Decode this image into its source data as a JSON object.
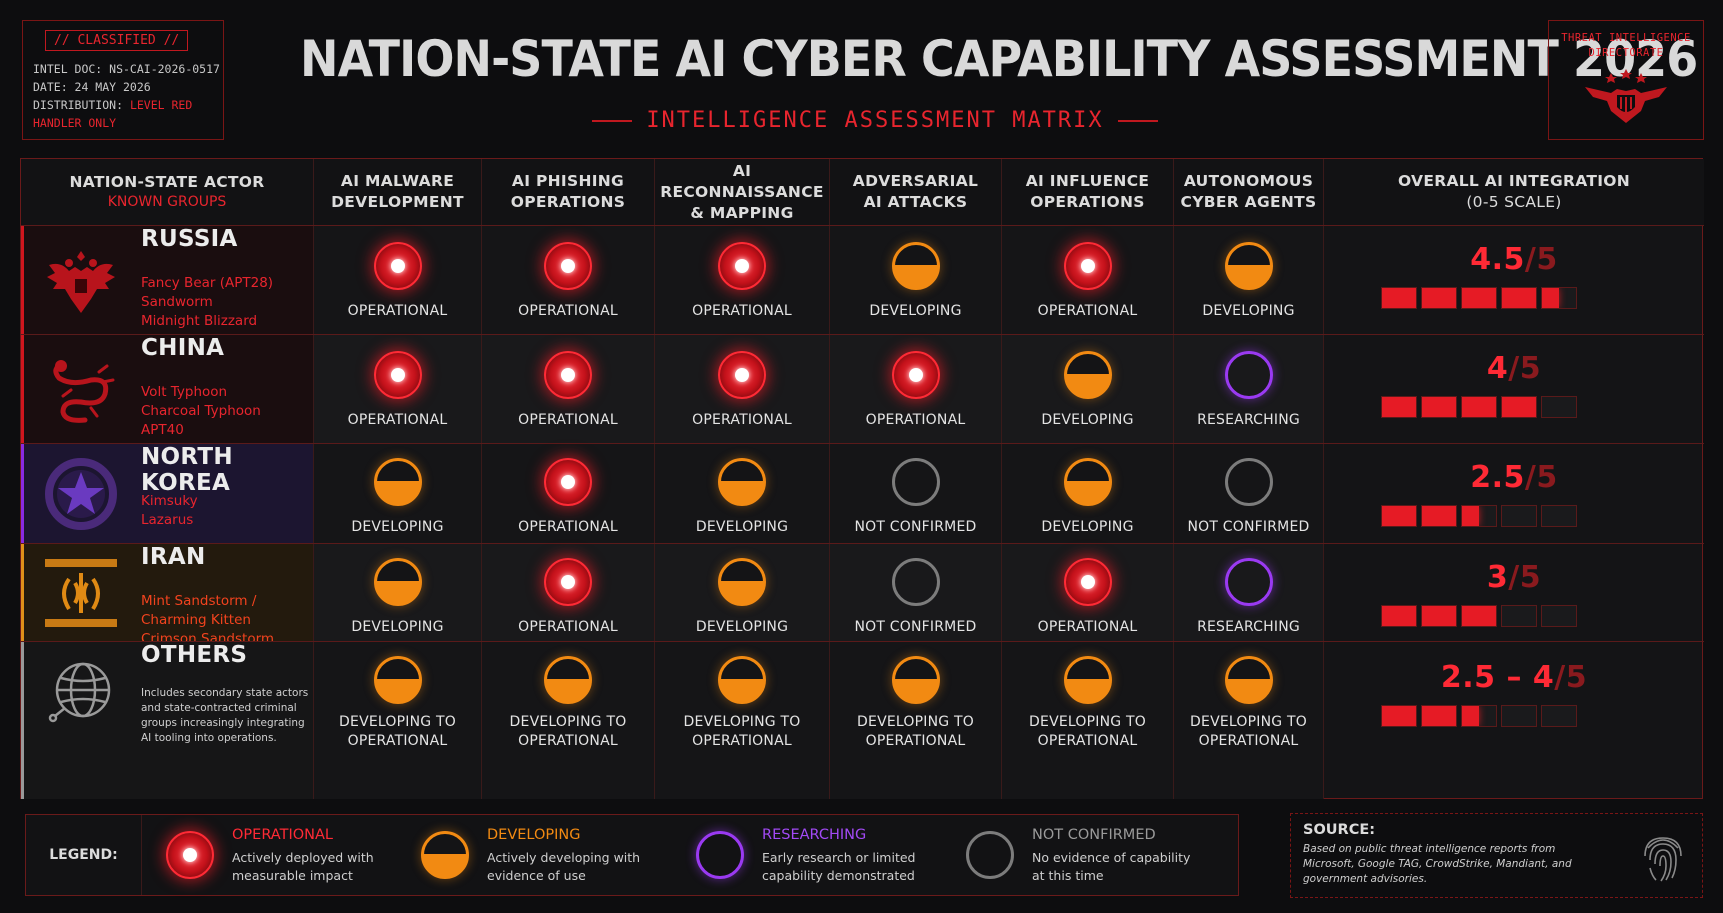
{
  "classified": {
    "tag": "// CLASSIFIED //",
    "doc": "INTEL DOC: NS-CAI-2026-0517",
    "date": "DATE: 24 MAY 2026",
    "distribution_label": "DISTRIBUTION: ",
    "distribution_value": "LEVEL RED",
    "distribution_value2": "HANDLER ONLY"
  },
  "title": "NATION-STATE AI CYBER CAPABILITY ASSESSMENT 2026",
  "subtitle": "INTELLIGENCE ASSESSMENT MATRIX",
  "directorate": {
    "line1": "THREAT INTELLIGENCE",
    "line2": "DIRECTORATE",
    "icon": "eagle-shield-icon"
  },
  "columns": {
    "actor": {
      "line1": "NATION-STATE ACTOR",
      "line2": "KNOWN GROUPS"
    },
    "c1": {
      "line1": "AI MALWARE",
      "line2": "DEVELOPMENT"
    },
    "c2": {
      "line1": "AI PHISHING",
      "line2": "OPERATIONS"
    },
    "c3": {
      "line1": "AI RECONNAISSANCE",
      "line2": "& MAPPING"
    },
    "c4": {
      "line1": "ADVERSARIAL",
      "line2": "AI ATTACKS"
    },
    "c5": {
      "line1": "AI INFLUENCE",
      "line2": "OPERATIONS"
    },
    "c6": {
      "line1": "AUTONOMOUS",
      "line2": "CYBER AGENTS"
    },
    "score": {
      "line1": "OVERALL AI INTEGRATION",
      "line2": "(0-5 SCALE)"
    }
  },
  "rows": [
    {
      "name": "RUSSIA",
      "groups": [
        "Fancy Bear (APT28)",
        "Sandworm",
        "Midnight Blizzard"
      ],
      "emblem": "double-headed-eagle-icon",
      "accent": "#d0161e",
      "cells": [
        {
          "status": "op",
          "label": "OPERATIONAL"
        },
        {
          "status": "op",
          "label": "OPERATIONAL"
        },
        {
          "status": "op",
          "label": "OPERATIONAL"
        },
        {
          "status": "dev",
          "label": "DEVELOPING"
        },
        {
          "status": "op",
          "label": "OPERATIONAL"
        },
        {
          "status": "dev",
          "label": "DEVELOPING"
        }
      ],
      "score_text": "4.5",
      "score_den": "/5",
      "score_value": 4.5
    },
    {
      "name": "CHINA",
      "groups": [
        "Volt Typhoon",
        "Charcoal Typhoon",
        "APT40"
      ],
      "emblem": "dragon-icon",
      "accent": "#d0161e",
      "cells": [
        {
          "status": "op",
          "label": "OPERATIONAL"
        },
        {
          "status": "op",
          "label": "OPERATIONAL"
        },
        {
          "status": "op",
          "label": "OPERATIONAL"
        },
        {
          "status": "op",
          "label": "OPERATIONAL"
        },
        {
          "status": "dev",
          "label": "DEVELOPING"
        },
        {
          "status": "res",
          "label": "RESEARCHING"
        }
      ],
      "score_text": "4",
      "score_den": "/5",
      "score_value": 4
    },
    {
      "name": "NORTH KOREA",
      "groups": [
        "Kimsuky",
        "Lazarus"
      ],
      "emblem": "star-emblem-icon",
      "accent": "#8a2ae0",
      "cells": [
        {
          "status": "dev",
          "label": "DEVELOPING"
        },
        {
          "status": "op",
          "label": "OPERATIONAL"
        },
        {
          "status": "dev",
          "label": "DEVELOPING"
        },
        {
          "status": "nc",
          "label": "NOT CONFIRMED"
        },
        {
          "status": "dev",
          "label": "DEVELOPING"
        },
        {
          "status": "nc",
          "label": "NOT CONFIRMED"
        }
      ],
      "score_text": "2.5",
      "score_den": "/5",
      "score_value": 2.5
    },
    {
      "name": "IRAN",
      "groups": [
        "Mint Sandstorm /",
        "Charming Kitten",
        "Crimson Sandstorm"
      ],
      "emblem": "iran-emblem-icon",
      "accent": "#e0901a",
      "cells": [
        {
          "status": "dev",
          "label": "DEVELOPING"
        },
        {
          "status": "op",
          "label": "OPERATIONAL"
        },
        {
          "status": "dev",
          "label": "DEVELOPING"
        },
        {
          "status": "nc",
          "label": "NOT CONFIRMED"
        },
        {
          "status": "op",
          "label": "OPERATIONAL"
        },
        {
          "status": "res",
          "label": "RESEARCHING"
        }
      ],
      "score_text": "3",
      "score_den": "/5",
      "score_value": 3
    },
    {
      "name": "OTHERS",
      "desc": "Includes secondary state actors and state-contracted criminal groups increasingly integrating AI tooling into operations.",
      "emblem": "globe-network-icon",
      "accent": "#9a9a9a",
      "cells": [
        {
          "status": "dev",
          "label": "DEVELOPING TO OPERATIONAL"
        },
        {
          "status": "dev",
          "label": "DEVELOPING TO OPERATIONAL"
        },
        {
          "status": "dev",
          "label": "DEVELOPING TO OPERATIONAL"
        },
        {
          "status": "dev",
          "label": "DEVELOPING TO OPERATIONAL"
        },
        {
          "status": "dev",
          "label": "DEVELOPING TO OPERATIONAL"
        },
        {
          "status": "dev",
          "label": "DEVELOPING TO OPERATIONAL"
        }
      ],
      "score_text": "2.5 – 4",
      "score_den": "/5",
      "score_value": 2.5
    }
  ],
  "legend": {
    "title": "LEGEND:",
    "items": [
      {
        "status": "op",
        "name": "OPERATIONAL",
        "color": "#ff2a35",
        "d1": "Actively deployed with",
        "d2": "measurable impact"
      },
      {
        "status": "dev",
        "name": "DEVELOPING",
        "color": "#f28a12",
        "d1": "Actively developing with",
        "d2": "evidence of use"
      },
      {
        "status": "res",
        "name": "RESEARCHING",
        "color": "#a24af5",
        "d1": "Early research or limited",
        "d2": "capability demonstrated"
      },
      {
        "status": "nc",
        "name": "NOT CONFIRMED",
        "color": "#9a9a9a",
        "d1": "No evidence of capability",
        "d2": "at this time"
      }
    ]
  },
  "source": {
    "title": "SOURCE:",
    "text": "Based on public threat intelligence reports from Microsoft, Google TAG, CrowdStrike, Mandiant, and government advisories.",
    "icon": "fingerprint-icon"
  }
}
